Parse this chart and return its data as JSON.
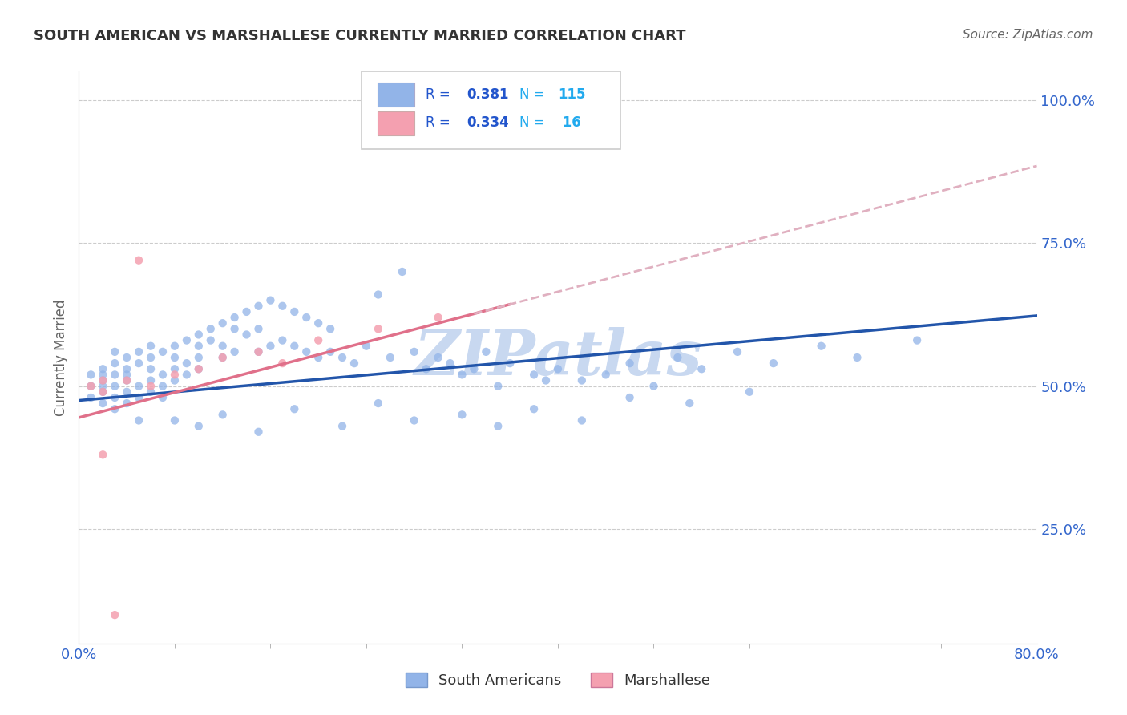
{
  "title": "SOUTH AMERICAN VS MARSHALLESE CURRENTLY MARRIED CORRELATION CHART",
  "source": "Source: ZipAtlas.com",
  "ylabel": "Currently Married",
  "yticks": [
    0.25,
    0.5,
    0.75,
    1.0
  ],
  "ytick_labels": [
    "25.0%",
    "50.0%",
    "75.0%",
    "100.0%"
  ],
  "xmin": 0.0,
  "xmax": 0.8,
  "ymin": 0.05,
  "ymax": 1.05,
  "blue_R": 0.381,
  "blue_N": 115,
  "pink_R": 0.334,
  "pink_N": 16,
  "blue_color": "#92b4e8",
  "pink_color": "#f4a0b0",
  "blue_line_color": "#2255aa",
  "pink_line_color": "#e0708a",
  "pink_dash_color": "#e0b0c0",
  "watermark": "ZIPatlas",
  "watermark_color": "#c8d8f0",
  "legend_R_color": "#2255cc",
  "legend_N_color": "#22aaee",
  "blue_intercept": 0.475,
  "blue_slope": 0.185,
  "pink_intercept": 0.445,
  "pink_slope": 0.55,
  "blue_x": [
    0.01,
    0.01,
    0.01,
    0.02,
    0.02,
    0.02,
    0.02,
    0.02,
    0.02,
    0.03,
    0.03,
    0.03,
    0.03,
    0.03,
    0.03,
    0.04,
    0.04,
    0.04,
    0.04,
    0.04,
    0.04,
    0.05,
    0.05,
    0.05,
    0.05,
    0.05,
    0.06,
    0.06,
    0.06,
    0.06,
    0.06,
    0.07,
    0.07,
    0.07,
    0.07,
    0.08,
    0.08,
    0.08,
    0.08,
    0.09,
    0.09,
    0.09,
    0.1,
    0.1,
    0.1,
    0.1,
    0.11,
    0.11,
    0.12,
    0.12,
    0.12,
    0.13,
    0.13,
    0.13,
    0.14,
    0.14,
    0.15,
    0.15,
    0.15,
    0.16,
    0.16,
    0.17,
    0.17,
    0.18,
    0.18,
    0.19,
    0.19,
    0.2,
    0.2,
    0.21,
    0.21,
    0.22,
    0.23,
    0.24,
    0.25,
    0.26,
    0.27,
    0.28,
    0.29,
    0.3,
    0.31,
    0.32,
    0.33,
    0.34,
    0.35,
    0.36,
    0.38,
    0.39,
    0.4,
    0.42,
    0.44,
    0.46,
    0.48,
    0.5,
    0.52,
    0.55,
    0.58,
    0.62,
    0.65,
    0.7,
    0.08,
    0.1,
    0.12,
    0.15,
    0.18,
    0.22,
    0.25,
    0.28,
    0.32,
    0.35,
    0.38,
    0.42,
    0.46,
    0.51,
    0.56
  ],
  "blue_y": [
    0.5,
    0.48,
    0.52,
    0.51,
    0.49,
    0.53,
    0.47,
    0.52,
    0.5,
    0.54,
    0.5,
    0.48,
    0.52,
    0.56,
    0.46,
    0.53,
    0.51,
    0.49,
    0.55,
    0.47,
    0.52,
    0.54,
    0.5,
    0.48,
    0.56,
    0.44,
    0.55,
    0.53,
    0.51,
    0.49,
    0.57,
    0.56,
    0.52,
    0.5,
    0.48,
    0.57,
    0.55,
    0.53,
    0.51,
    0.58,
    0.54,
    0.52,
    0.59,
    0.57,
    0.55,
    0.53,
    0.6,
    0.58,
    0.61,
    0.57,
    0.55,
    0.62,
    0.6,
    0.56,
    0.63,
    0.59,
    0.64,
    0.6,
    0.56,
    0.65,
    0.57,
    0.64,
    0.58,
    0.63,
    0.57,
    0.62,
    0.56,
    0.61,
    0.55,
    0.6,
    0.56,
    0.55,
    0.54,
    0.57,
    0.66,
    0.55,
    0.7,
    0.56,
    0.53,
    0.55,
    0.54,
    0.52,
    0.53,
    0.56,
    0.5,
    0.54,
    0.52,
    0.51,
    0.53,
    0.51,
    0.52,
    0.54,
    0.5,
    0.55,
    0.53,
    0.56,
    0.54,
    0.57,
    0.55,
    0.58,
    0.44,
    0.43,
    0.45,
    0.42,
    0.46,
    0.43,
    0.47,
    0.44,
    0.45,
    0.43,
    0.46,
    0.44,
    0.48,
    0.47,
    0.49
  ],
  "pink_x": [
    0.01,
    0.02,
    0.02,
    0.02,
    0.03,
    0.04,
    0.05,
    0.06,
    0.08,
    0.1,
    0.12,
    0.15,
    0.17,
    0.2,
    0.25,
    0.3
  ],
  "pink_y": [
    0.5,
    0.51,
    0.49,
    0.38,
    0.1,
    0.51,
    0.72,
    0.5,
    0.52,
    0.53,
    0.55,
    0.56,
    0.54,
    0.58,
    0.6,
    0.62
  ]
}
